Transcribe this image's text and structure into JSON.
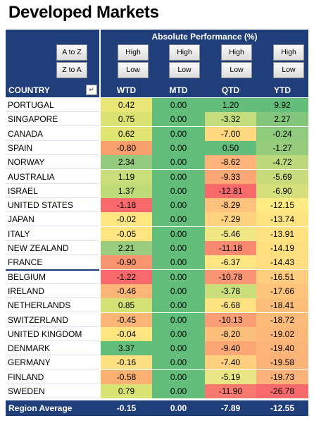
{
  "title": "Developed Markets",
  "header": {
    "absolute_performance": "Absolute Performance (%)",
    "sort_az": "A to Z",
    "sort_za": "Z to A",
    "high": "High",
    "low": "Low",
    "columns": [
      "COUNTRY",
      "WTD",
      "MTD",
      "QTD",
      "YTD"
    ],
    "filter_icon": "filter-dropdown-icon"
  },
  "rows": [
    {
      "country": "PORTUGAL",
      "wtd": "0.42",
      "mtd": "0.00",
      "qtd": "1.20",
      "ytd": "9.92",
      "colors": [
        "#e9e676",
        "#63be7b",
        "#63be7b",
        "#63be7b"
      ]
    },
    {
      "country": "SINGAPORE",
      "wtd": "0.75",
      "mtd": "0.00",
      "qtd": "-3.32",
      "ytd": "2.27",
      "colors": [
        "#dae372",
        "#63be7b",
        "#c5dd7c",
        "#84c77c"
      ]
    },
    {
      "country": "CANADA",
      "wtd": "0.62",
      "mtd": "0.00",
      "qtd": "-7.00",
      "ytd": "-0.24",
      "colors": [
        "#e0e574",
        "#63be7b",
        "#ffd880",
        "#8fca7d"
      ]
    },
    {
      "country": "SPAIN",
      "wtd": "-0.80",
      "mtd": "0.00",
      "qtd": "0.50",
      "ytd": "-1.27",
      "colors": [
        "#f8a06d",
        "#63be7b",
        "#63be7b",
        "#98cc7d"
      ]
    },
    {
      "country": "NORWAY",
      "wtd": "2.34",
      "mtd": "0.00",
      "qtd": "-8.62",
      "ytd": "-4.72",
      "colors": [
        "#93cb7e",
        "#63be7b",
        "#fdb37a",
        "#bed97b"
      ]
    },
    {
      "country": "AUSTRALIA",
      "wtd": "1.19",
      "mtd": "0.00",
      "qtd": "-9.33",
      "ytd": "-5.69",
      "colors": [
        "#c8de78",
        "#63be7b",
        "#fba776",
        "#c8dc7b"
      ]
    },
    {
      "country": "ISRAEL",
      "wtd": "1.37",
      "mtd": "0.00",
      "qtd": "-12.81",
      "ytd": "-6.90",
      "colors": [
        "#bedb78",
        "#63be7b",
        "#f8696b",
        "#d5e07c"
      ]
    },
    {
      "country": "UNITED STATES",
      "wtd": "-1.18",
      "mtd": "0.00",
      "qtd": "-8.29",
      "ytd": "-12.15",
      "colors": [
        "#f8696b",
        "#63be7b",
        "#fdc27c",
        "#feeb84"
      ]
    },
    {
      "country": "JAPAN",
      "wtd": "-0.02",
      "mtd": "0.00",
      "qtd": "-7.29",
      "ytd": "-13.74",
      "colors": [
        "#fee783",
        "#63be7b",
        "#fed27f",
        "#fee382"
      ]
    },
    {
      "country": "ITALY",
      "wtd": "-0.05",
      "mtd": "0.00",
      "qtd": "-5.46",
      "ytd": "-13.91",
      "colors": [
        "#fee582",
        "#63be7b",
        "#f0e683",
        "#fee282"
      ]
    },
    {
      "country": "NEW ZEALAND",
      "wtd": "2.21",
      "mtd": "0.00",
      "qtd": "-11.18",
      "ytd": "-14.19",
      "colors": [
        "#99cc7f",
        "#63be7b",
        "#f98a72",
        "#fee081"
      ]
    },
    {
      "country": "FRANCE",
      "wtd": "-0.90",
      "mtd": "0.00",
      "qtd": "-6.37",
      "ytd": "-14.43",
      "colors": [
        "#f8946f",
        "#63be7b",
        "#fee683",
        "#fede81"
      ]
    },
    {
      "country": "BELGIUM",
      "wtd": "-1.22",
      "mtd": "0.00",
      "qtd": "-10.78",
      "ytd": "-16.51",
      "colors": [
        "#f8696b",
        "#63be7b",
        "#f99573",
        "#fdcc7e"
      ]
    },
    {
      "country": "IRELAND",
      "wtd": "-0.46",
      "mtd": "0.00",
      "qtd": "-3.78",
      "ytd": "-17.66",
      "colors": [
        "#fbb677",
        "#63be7b",
        "#cadf7c",
        "#fdc47c"
      ]
    },
    {
      "country": "NETHERLANDS",
      "wtd": "0.85",
      "mtd": "0.00",
      "qtd": "-6.68",
      "ytd": "-18.41",
      "colors": [
        "#d4e275",
        "#63be7b",
        "#fee282",
        "#fcbe7b"
      ]
    },
    {
      "country": "SWITZERLAND",
      "wtd": "-0.45",
      "mtd": "0.00",
      "qtd": "-10.13",
      "ytd": "-18.72",
      "colors": [
        "#fbb577",
        "#63be7b",
        "#fa9f75",
        "#fcbb7a"
      ]
    },
    {
      "country": "UNITED KINGDOM",
      "wtd": "-0.04",
      "mtd": "0.00",
      "qtd": "-8.20",
      "ytd": "-19.02",
      "colors": [
        "#fde582",
        "#63be7b",
        "#fdc07c",
        "#fcb879"
      ]
    },
    {
      "country": "DENMARK",
      "wtd": "3.37",
      "mtd": "0.00",
      "qtd": "-9.40",
      "ytd": "-19.40",
      "colors": [
        "#63be7b",
        "#63be7b",
        "#fca876",
        "#fcb479"
      ]
    },
    {
      "country": "GERMANY",
      "wtd": "-0.16",
      "mtd": "0.00",
      "qtd": "-7.40",
      "ytd": "-19.58",
      "colors": [
        "#fde081",
        "#63be7b",
        "#fed07f",
        "#fbb378"
      ]
    },
    {
      "country": "FINLAND",
      "wtd": "-0.58",
      "mtd": "0.00",
      "qtd": "-5.19",
      "ytd": "-19.73",
      "colors": [
        "#fab071",
        "#63be7b",
        "#e9e584",
        "#fbb278"
      ]
    },
    {
      "country": "SWEDEN",
      "wtd": "0.79",
      "mtd": "0.00",
      "qtd": "-11.90",
      "ytd": "-26.78",
      "colors": [
        "#d8e374",
        "#63be7b",
        "#f9796e",
        "#f8696b"
      ]
    }
  ],
  "footer": {
    "label": "Region Average",
    "wtd": "-0.15",
    "mtd": "0.00",
    "qtd": "-7.89",
    "ytd": "-12.55"
  }
}
